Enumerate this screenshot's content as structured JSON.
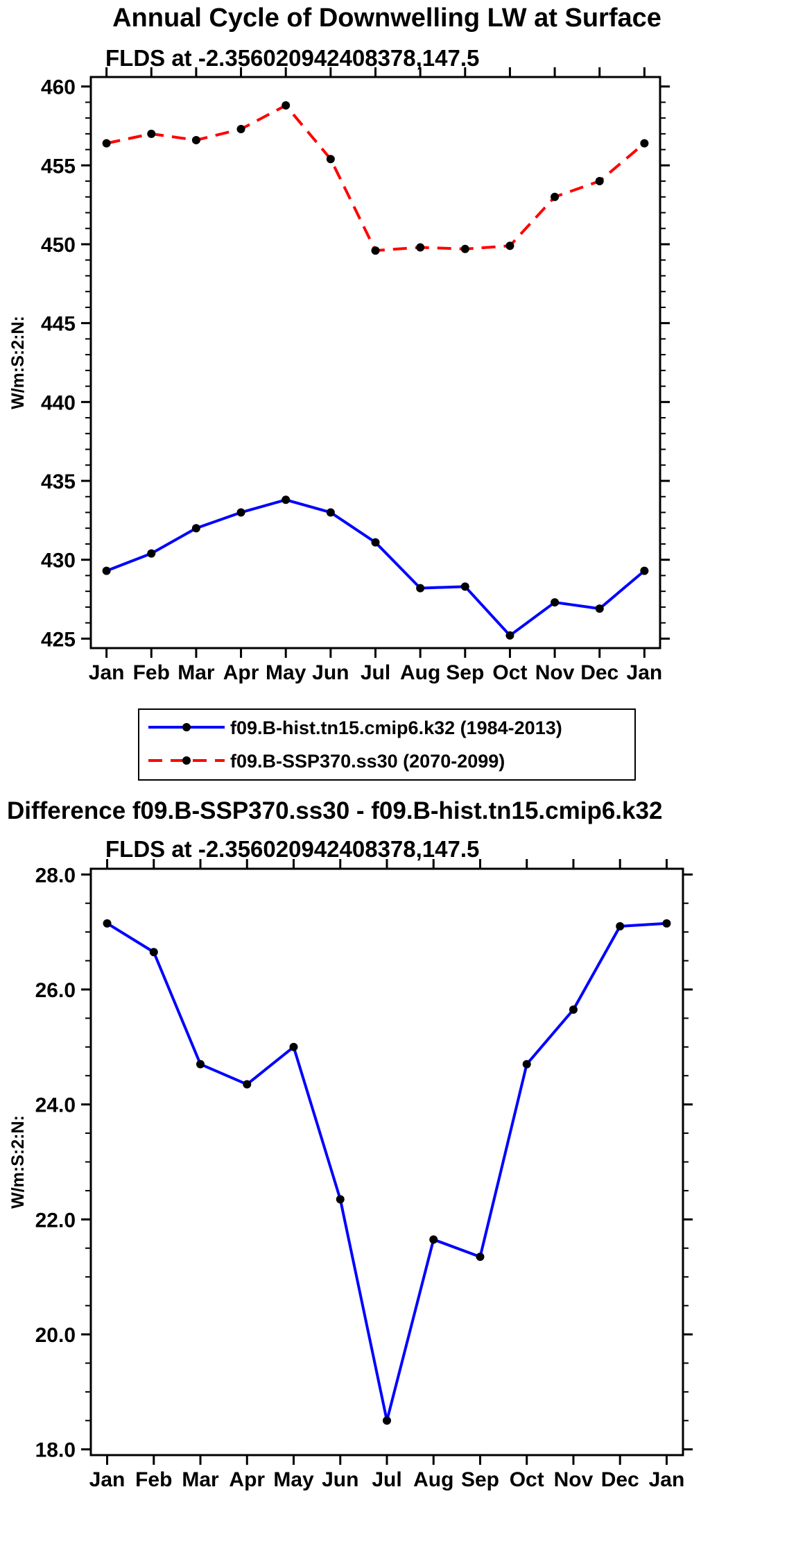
{
  "chart_data": [
    {
      "type": "line",
      "title": "Annual Cycle of Downwelling LW at Surface",
      "subtitle": "FLDS at -2.356020942408378,147.5",
      "xlabel": "",
      "ylabel": "W/m:S:2:N:",
      "categories": [
        "Jan",
        "Feb",
        "Mar",
        "Apr",
        "May",
        "Jun",
        "Jul",
        "Aug",
        "Sep",
        "Oct",
        "Nov",
        "Dec",
        "Jan"
      ],
      "ylim": [
        424.4,
        460.6
      ],
      "yticks": [
        425,
        430,
        435,
        440,
        445,
        450,
        455,
        460
      ],
      "ytick_labels": [
        "425",
        "430",
        "435",
        "440",
        "445",
        "450",
        "455",
        "460"
      ],
      "yminor_step": 1,
      "grid": false,
      "legend_position": "below",
      "frame_color": "#000000",
      "series": [
        {
          "name": "f09.B-hist.tn15.cmip6.k32 (1984-2013)",
          "color": "#0000FF",
          "style": "solid",
          "marker_color": "#000000",
          "values": [
            429.3,
            430.4,
            432.0,
            433.0,
            433.8,
            433.0,
            431.1,
            428.2,
            428.3,
            425.2,
            427.3,
            426.9,
            429.3
          ]
        },
        {
          "name": "f09.B-SSP370.ss30 (2070-2099)",
          "color": "#FF0000",
          "style": "dashed",
          "marker_color": "#000000",
          "values": [
            456.4,
            457.0,
            456.6,
            457.3,
            458.8,
            455.4,
            449.6,
            449.8,
            449.7,
            449.9,
            453.0,
            454.0,
            456.4
          ]
        }
      ]
    },
    {
      "type": "line",
      "title": "Difference f09.B-SSP370.ss30 - f09.B-hist.tn15.cmip6.k32",
      "subtitle": "FLDS at -2.356020942408378,147.5",
      "xlabel": "",
      "ylabel": "W/m:S:2:N:",
      "categories": [
        "Jan",
        "Feb",
        "Mar",
        "Apr",
        "May",
        "Jun",
        "Jul",
        "Aug",
        "Sep",
        "Oct",
        "Nov",
        "Dec",
        "Jan"
      ],
      "ylim": [
        17.9,
        28.1
      ],
      "yticks": [
        18,
        20,
        22,
        24,
        26,
        28
      ],
      "ytick_labels": [
        "18.0",
        "20.0",
        "22.0",
        "24.0",
        "26.0",
        "28.0"
      ],
      "yminor_step": 0.5,
      "grid": false,
      "legend_position": "none",
      "frame_color": "#000000",
      "series": [
        {
          "name": "difference",
          "color": "#0000FF",
          "style": "solid",
          "marker_color": "#000000",
          "values": [
            27.15,
            26.65,
            24.7,
            24.35,
            25.0,
            22.35,
            18.5,
            21.65,
            21.35,
            24.7,
            25.65,
            27.1,
            27.15
          ]
        }
      ]
    }
  ]
}
